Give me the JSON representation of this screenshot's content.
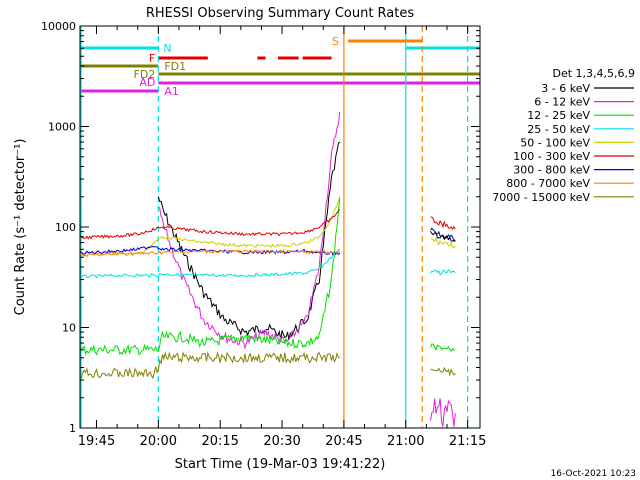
{
  "chart_data": {
    "type": "line",
    "title": "RHESSI Observing Summary Count Rates",
    "xlabel": "Start Time (19-Mar-03 19:41:22)",
    "ylabel": "Count Rate (s⁻¹ detector⁻¹)",
    "ylim": [
      1,
      10000
    ],
    "yscale": "log",
    "xlim_minutes_since_1941": [
      0,
      97
    ],
    "x_tick_labels": [
      "19:45",
      "20:00",
      "20:15",
      "20:30",
      "20:45",
      "21:00",
      "21:15"
    ],
    "x_tick_minutes": [
      4,
      19,
      34,
      49,
      64,
      79,
      94
    ],
    "y_tick_labels": [
      "1",
      "10",
      "100",
      "1000",
      "10000"
    ],
    "y_tick_values": [
      1,
      10,
      100,
      1000,
      10000
    ],
    "legend_title": "Det 1,3,4,5,6,9",
    "legend_position": "right",
    "timestamp": "16-Oct-2021 10:23",
    "series": [
      {
        "name": "3 - 6 keV",
        "color": "#000000",
        "x": [
          19,
          20,
          25,
          30,
          35,
          40,
          45,
          50,
          55,
          58,
          61,
          63
        ],
        "y": [
          200,
          150,
          55,
          22,
          12,
          9,
          10,
          8,
          12,
          30,
          300,
          700
        ]
      },
      {
        "name": "6 - 12 keV",
        "color": "#e020e0",
        "x": [
          19,
          20,
          25,
          30,
          35,
          40,
          45,
          50,
          55,
          58,
          61,
          63
        ],
        "y": [
          160,
          110,
          30,
          12,
          8,
          7,
          9,
          7,
          12,
          40,
          500,
          1400
        ]
      },
      {
        "name": "12 - 25 keV",
        "color": "#00e000",
        "x": [
          0,
          5,
          10,
          15,
          18,
          19,
          20,
          25,
          30,
          40,
          50,
          55,
          58,
          61,
          63
        ],
        "y": [
          6,
          6,
          6,
          6,
          6,
          6,
          8,
          8,
          7,
          8,
          7,
          7,
          8,
          30,
          200
        ]
      },
      {
        "name": "25 - 50 keV",
        "color": "#00e0e0",
        "x": [
          0,
          10,
          18,
          20,
          30,
          40,
          50,
          55,
          58,
          61,
          63
        ],
        "y": [
          32,
          33,
          33,
          34,
          33,
          33,
          34,
          35,
          38,
          50,
          60
        ]
      },
      {
        "name": "50 - 100 keV",
        "color": "#d0d000",
        "x": [
          0,
          10,
          15,
          18,
          20,
          30,
          40,
          50,
          55,
          58,
          61,
          63
        ],
        "y": [
          55,
          55,
          55,
          70,
          80,
          70,
          65,
          65,
          70,
          80,
          120,
          200
        ]
      },
      {
        "name": "100 - 300 keV",
        "color": "#e00000",
        "x": [
          0,
          10,
          14,
          18,
          20,
          30,
          40,
          50,
          55,
          58,
          61,
          63
        ],
        "y": [
          78,
          82,
          85,
          95,
          100,
          90,
          85,
          85,
          90,
          100,
          120,
          150
        ]
      },
      {
        "name": "300 - 800 keV",
        "color": "#0000e0",
        "x": [
          0,
          10,
          14,
          18,
          20,
          30,
          40,
          50,
          55,
          58,
          61,
          63
        ],
        "y": [
          55,
          58,
          60,
          65,
          60,
          58,
          56,
          56,
          58,
          55,
          55,
          55
        ]
      },
      {
        "name": "800 - 7000 keV",
        "color": "#ff8000",
        "x": [
          0,
          10,
          18,
          20,
          30,
          40,
          50,
          55,
          58,
          61,
          63
        ],
        "y": [
          52,
          54,
          55,
          56,
          57,
          57,
          57,
          56,
          56,
          56,
          56
        ]
      },
      {
        "name": "7000 - 15000 keV",
        "color": "#808000",
        "x": [
          0,
          5,
          10,
          15,
          18,
          20,
          30,
          40,
          50,
          55,
          58,
          61,
          63
        ],
        "y": [
          3.5,
          3.5,
          3.5,
          3.5,
          3.5,
          5,
          5,
          5,
          5,
          5,
          5,
          5,
          5
        ]
      }
    ],
    "post_gap_segments": [
      {
        "series": "100 - 300 keV",
        "x": [
          85,
          91
        ],
        "y": [
          120,
          95
        ]
      },
      {
        "series": "300 - 800 keV",
        "x": [
          85,
          91
        ],
        "y": [
          95,
          75
        ]
      },
      {
        "series": "3 - 6 keV",
        "x": [
          85,
          91
        ],
        "y": [
          85,
          72
        ]
      },
      {
        "series": "50 - 100 keV",
        "x": [
          85,
          91
        ],
        "y": [
          75,
          65
        ]
      },
      {
        "series": "25 - 50 keV",
        "x": [
          85,
          91
        ],
        "y": [
          35,
          35
        ]
      },
      {
        "series": "12 - 25 keV",
        "x": [
          85,
          91
        ],
        "y": [
          6.5,
          6
        ]
      },
      {
        "series": "7000 - 15000 keV",
        "x": [
          85,
          91
        ],
        "y": [
          4,
          3.5
        ]
      },
      {
        "series": "6 - 12 keV",
        "x": [
          85,
          91
        ],
        "y": [
          1.4,
          1.4
        ]
      }
    ],
    "flag_bars": [
      {
        "label": "N",
        "color": "#00e0e0",
        "segments": [
          [
            0,
            19
          ],
          [
            79,
            97
          ]
        ]
      },
      {
        "label": "S",
        "color": "#ff8000",
        "segments": [
          [
            65,
            83
          ]
        ]
      },
      {
        "label": "F",
        "color": "#e00000",
        "segments": [
          [
            19,
            31
          ],
          [
            43,
            45
          ],
          [
            48,
            53
          ],
          [
            54,
            61
          ]
        ]
      },
      {
        "label": "FD1",
        "color": "#808000",
        "segments": [
          [
            0,
            19
          ]
        ]
      },
      {
        "label": "FD2",
        "color": "#808000",
        "segments": [
          [
            19,
            97
          ]
        ]
      },
      {
        "label": "AD",
        "color": "#e020e0",
        "segments": [
          [
            19,
            97
          ]
        ]
      },
      {
        "label": "A1",
        "color": "#e020e0",
        "segments": [
          [
            0,
            19
          ]
        ]
      }
    ],
    "vertical_markers": [
      {
        "x": 19,
        "color": "#00e0e0",
        "style": "dashed"
      },
      {
        "x": 64,
        "color": "#ff8000",
        "style": "solid"
      },
      {
        "x": 79,
        "color": "#00e0e0",
        "style": "solid"
      },
      {
        "x": 83,
        "color": "#ff8000",
        "style": "dashed"
      },
      {
        "x": 94,
        "color": "#00e0e0",
        "style": "dashed"
      }
    ]
  }
}
